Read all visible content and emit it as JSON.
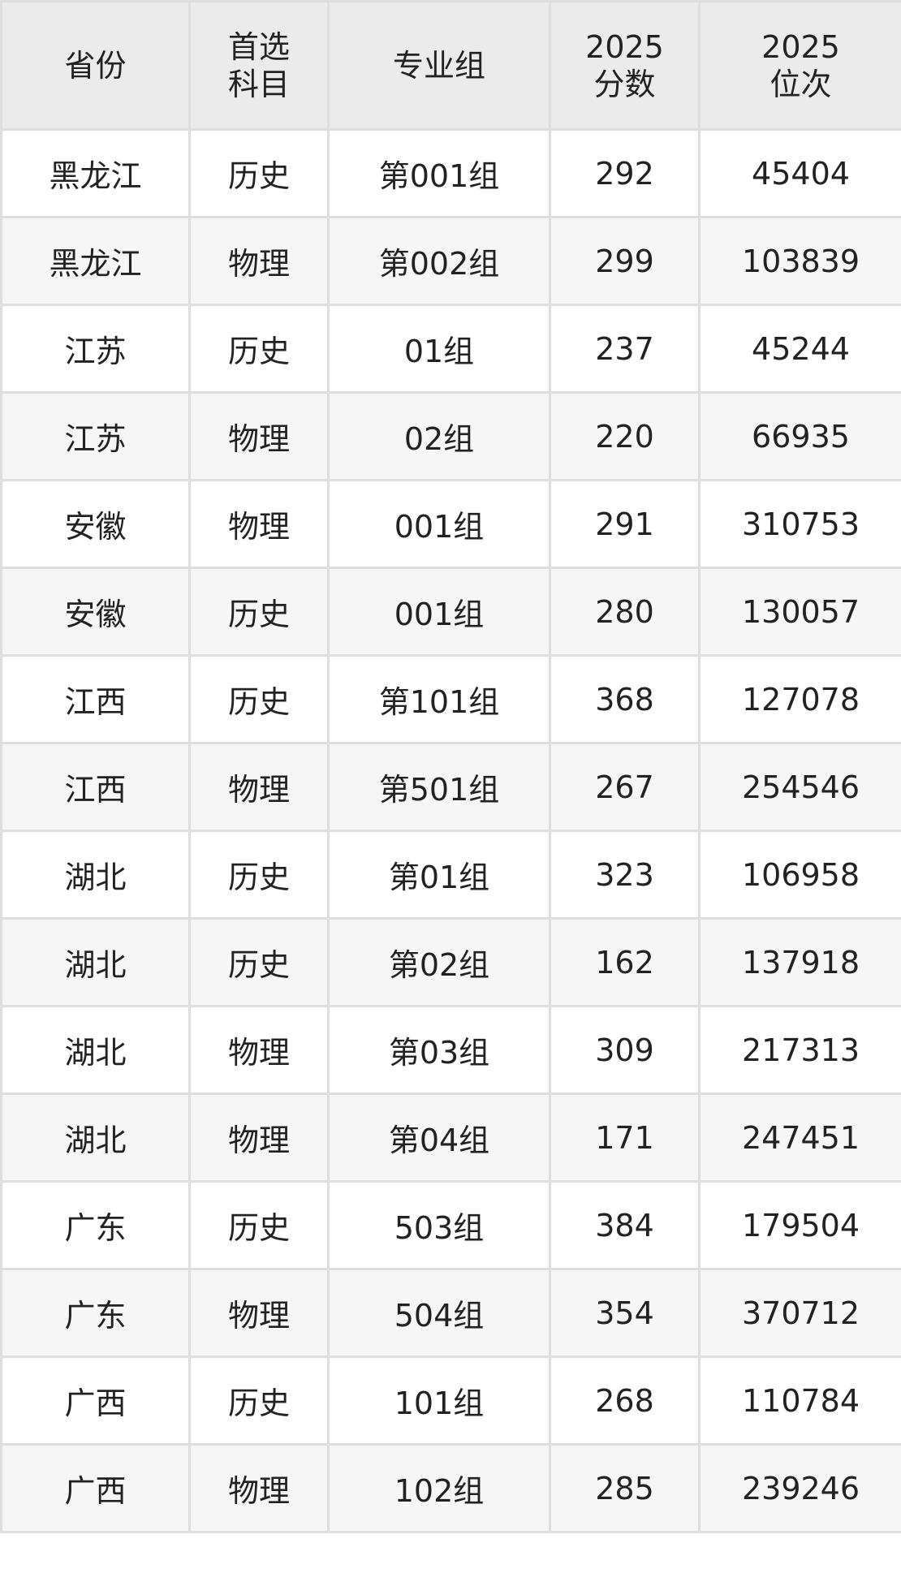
{
  "table": {
    "headers": [
      {
        "line1": "省份",
        "line2": ""
      },
      {
        "line1": "首选",
        "line2": "科目"
      },
      {
        "line1": "专业组",
        "line2": ""
      },
      {
        "line1": "2025",
        "line2": "分数"
      },
      {
        "line1": "2025",
        "line2": "位次"
      }
    ],
    "rows": [
      [
        "黑龙江",
        "历史",
        "第001组",
        "292",
        "45404"
      ],
      [
        "黑龙江",
        "物理",
        "第002组",
        "299",
        "103839"
      ],
      [
        "江苏",
        "历史",
        "01组",
        "237",
        "45244"
      ],
      [
        "江苏",
        "物理",
        "02组",
        "220",
        "66935"
      ],
      [
        "安徽",
        "物理",
        "001组",
        "291",
        "310753"
      ],
      [
        "安徽",
        "历史",
        "001组",
        "280",
        "130057"
      ],
      [
        "江西",
        "历史",
        "第101组",
        "368",
        "127078"
      ],
      [
        "江西",
        "物理",
        "第501组",
        "267",
        "254546"
      ],
      [
        "湖北",
        "历史",
        "第01组",
        "323",
        "106958"
      ],
      [
        "湖北",
        "历史",
        "第02组",
        "162",
        "137918"
      ],
      [
        "湖北",
        "物理",
        "第03组",
        "309",
        "217313"
      ],
      [
        "湖北",
        "物理",
        "第04组",
        "171",
        "247451"
      ],
      [
        "广东",
        "历史",
        "503组",
        "384",
        "179504"
      ],
      [
        "广东",
        "物理",
        "504组",
        "354",
        "370712"
      ],
      [
        "广西",
        "历史",
        "101组",
        "268",
        "110784"
      ],
      [
        "广西",
        "物理",
        "102组",
        "285",
        "239246"
      ]
    ]
  }
}
